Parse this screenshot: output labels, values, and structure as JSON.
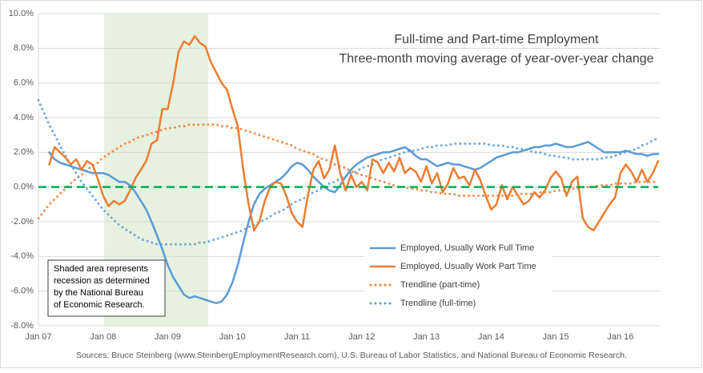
{
  "chart_data": {
    "type": "line",
    "title": [
      "Full-time and Part-time Employment",
      "Three-month moving average of year-over-year change"
    ],
    "annotation": [
      "Shaded area represents",
      "recession as determined",
      "by the National Bureau",
      "of Economic Research."
    ],
    "source": "Sources: Bruce Steinberg (www.SteinbergEmploymentResearch.com), U.S. Bureau of Labor Statistics, and National Bureau of Economic Research.",
    "categories": [
      "Jan 07",
      null,
      null,
      null,
      null,
      null,
      null,
      null,
      null,
      null,
      null,
      null,
      "Jan 08",
      null,
      null,
      null,
      null,
      null,
      null,
      null,
      null,
      null,
      null,
      null,
      "Jan 09",
      null,
      null,
      null,
      null,
      null,
      null,
      null,
      null,
      null,
      null,
      null,
      "Jan 10",
      null,
      null,
      null,
      null,
      null,
      null,
      null,
      null,
      null,
      null,
      null,
      "Jan 11",
      null,
      null,
      null,
      null,
      null,
      null,
      null,
      null,
      null,
      null,
      null,
      "Jan 12",
      null,
      null,
      null,
      null,
      null,
      null,
      null,
      null,
      null,
      null,
      null,
      "Jan 13",
      null,
      null,
      null,
      null,
      null,
      null,
      null,
      null,
      null,
      null,
      null,
      "Jan 14",
      null,
      null,
      null,
      null,
      null,
      null,
      null,
      null,
      null,
      null,
      null,
      "Jan 15",
      null,
      null,
      null,
      null,
      null,
      null,
      null,
      null,
      null,
      null,
      null,
      "Jan 16",
      null,
      null,
      null,
      null,
      null,
      null,
      null
    ],
    "series": [
      {
        "name": "Employed, Usually Work Full Time",
        "color": "#5b9bd5",
        "line_style": "solid",
        "values": [
          null,
          null,
          2.0,
          1.6,
          1.4,
          1.3,
          1.2,
          1.1,
          1.0,
          0.9,
          0.8,
          0.8,
          0.8,
          0.7,
          0.5,
          0.3,
          0.3,
          0.1,
          -0.3,
          -0.8,
          -1.3,
          -2.0,
          -2.8,
          -3.6,
          -4.5,
          -5.2,
          -5.7,
          -6.2,
          -6.4,
          -6.3,
          -6.4,
          -6.5,
          -6.6,
          -6.7,
          -6.6,
          -6.2,
          -5.5,
          -4.5,
          -3.2,
          -2.0,
          -1.0,
          -0.4,
          -0.1,
          0.1,
          0.3,
          0.5,
          0.8,
          1.2,
          1.4,
          1.3,
          1.0,
          0.6,
          0.3,
          0.0,
          -0.2,
          -0.3,
          0.1,
          0.6,
          1.0,
          1.3,
          1.5,
          1.7,
          1.8,
          1.9,
          2.0,
          2.0,
          2.1,
          2.2,
          2.3,
          2.1,
          1.8,
          1.6,
          1.6,
          1.4,
          1.2,
          1.3,
          1.4,
          1.3,
          1.3,
          1.2,
          1.1,
          1.0,
          1.1,
          1.3,
          1.5,
          1.7,
          1.8,
          1.9,
          2.0,
          2.0,
          2.1,
          2.2,
          2.3,
          2.3,
          2.4,
          2.4,
          2.5,
          2.4,
          2.3,
          2.3,
          2.4,
          2.5,
          2.6,
          2.4,
          2.2,
          2.0,
          2.0,
          2.0,
          2.0,
          2.1,
          2.0,
          1.9,
          1.9,
          1.8,
          1.9,
          1.9
        ]
      },
      {
        "name": "Employed, Usually Work Part Time",
        "color": "#ed7d31",
        "line_style": "solid",
        "values": [
          null,
          null,
          1.3,
          2.3,
          2.0,
          1.7,
          1.3,
          1.6,
          1.0,
          1.5,
          1.3,
          0.5,
          -0.5,
          -1.1,
          -0.8,
          -1.0,
          -0.8,
          -0.2,
          0.5,
          1.0,
          1.5,
          2.5,
          2.7,
          4.5,
          4.5,
          6.0,
          7.8,
          8.4,
          8.2,
          8.7,
          8.3,
          8.1,
          7.2,
          6.6,
          6.0,
          5.6,
          4.5,
          3.5,
          1.0,
          -1.0,
          -2.5,
          -2.0,
          -0.8,
          0.0,
          0.3,
          0.2,
          -0.5,
          -1.5,
          -2.0,
          -2.3,
          -0.5,
          1.0,
          1.5,
          0.5,
          1.0,
          2.4,
          0.8,
          -0.2,
          0.7,
          0.0,
          0.3,
          -0.2,
          1.6,
          1.4,
          0.8,
          1.4,
          0.9,
          1.7,
          0.8,
          1.1,
          0.9,
          0.3,
          1.2,
          0.2,
          0.8,
          -0.3,
          0.2,
          1.1,
          0.5,
          0.6,
          0.1,
          1.0,
          0.4,
          -0.5,
          -1.3,
          -1.0,
          0.1,
          -0.7,
          0.0,
          -0.5,
          -1.0,
          -0.8,
          -0.3,
          -0.6,
          -0.2,
          0.5,
          0.9,
          0.5,
          -0.5,
          0.3,
          0.6,
          -1.8,
          -2.3,
          -2.5,
          -2.0,
          -1.5,
          -1.0,
          -0.6,
          0.8,
          1.3,
          0.9,
          0.3,
          1.0,
          0.3,
          0.8,
          1.5
        ]
      },
      {
        "name": "Trendline (part-time)",
        "color": "#ed7d31",
        "line_style": "dotted",
        "values": [
          -1.8,
          -1.4,
          -1.0,
          -0.7,
          -0.4,
          -0.1,
          0.2,
          0.5,
          0.7,
          1.0,
          1.2,
          1.4,
          1.7,
          1.9,
          2.1,
          2.3,
          2.5,
          2.6,
          2.8,
          2.9,
          3.0,
          3.1,
          3.2,
          3.3,
          3.4,
          3.4,
          3.5,
          3.5,
          3.6,
          3.6,
          3.6,
          3.6,
          3.6,
          3.6,
          3.5,
          3.5,
          3.4,
          3.4,
          3.3,
          3.2,
          3.1,
          3.0,
          2.9,
          2.8,
          2.7,
          2.6,
          2.5,
          2.4,
          2.2,
          2.1,
          2.0,
          1.9,
          1.7,
          1.6,
          1.5,
          1.3,
          1.2,
          1.1,
          0.9,
          0.8,
          0.7,
          0.6,
          0.5,
          0.4,
          0.3,
          0.2,
          0.1,
          0.0,
          0.0,
          -0.1,
          -0.1,
          -0.2,
          -0.2,
          -0.3,
          -0.3,
          -0.4,
          -0.4,
          -0.4,
          -0.5,
          -0.5,
          -0.5,
          -0.5,
          -0.5,
          -0.5,
          -0.5,
          -0.5,
          -0.5,
          -0.5,
          -0.5,
          -0.4,
          -0.4,
          -0.4,
          -0.4,
          -0.3,
          -0.3,
          -0.3,
          -0.2,
          -0.2,
          -0.2,
          -0.1,
          -0.1,
          0.0,
          0.0,
          0.0,
          0.1,
          0.1,
          0.1,
          0.2,
          0.2,
          0.2,
          0.2,
          0.3,
          0.3,
          0.3,
          0.3,
          0.3
        ]
      },
      {
        "name": "Trendline (full-time)",
        "color": "#5b9bd5",
        "line_style": "dotted",
        "values": [
          5.0,
          4.3,
          3.6,
          3.0,
          2.4,
          1.8,
          1.3,
          0.8,
          0.3,
          -0.1,
          -0.5,
          -0.9,
          -1.3,
          -1.6,
          -1.9,
          -2.2,
          -2.4,
          -2.6,
          -2.8,
          -3.0,
          -3.1,
          -3.2,
          -3.3,
          -3.3,
          -3.3,
          -3.3,
          -3.3,
          -3.3,
          -3.3,
          -3.3,
          -3.2,
          -3.2,
          -3.1,
          -3.0,
          -2.9,
          -2.8,
          -2.7,
          -2.6,
          -2.5,
          -2.3,
          -2.2,
          -2.0,
          -1.9,
          -1.7,
          -1.5,
          -1.4,
          -1.2,
          -1.0,
          -0.8,
          -0.7,
          -0.5,
          -0.3,
          -0.2,
          0.0,
          0.2,
          0.3,
          0.5,
          0.6,
          0.8,
          0.9,
          1.1,
          1.2,
          1.3,
          1.5,
          1.6,
          1.7,
          1.8,
          1.9,
          2.0,
          2.1,
          2.1,
          2.2,
          2.3,
          2.3,
          2.4,
          2.4,
          2.4,
          2.5,
          2.5,
          2.5,
          2.5,
          2.5,
          2.5,
          2.5,
          2.4,
          2.4,
          2.4,
          2.3,
          2.3,
          2.2,
          2.2,
          2.1,
          2.0,
          2.0,
          1.9,
          1.8,
          1.8,
          1.7,
          1.7,
          1.6,
          1.6,
          1.6,
          1.6,
          1.6,
          1.6,
          1.7,
          1.7,
          1.8,
          1.9,
          2.0,
          2.1,
          2.2,
          2.4,
          2.5,
          2.7,
          2.8
        ]
      }
    ],
    "ylim": [
      -8,
      10
    ],
    "yticks": [
      {
        "value": -8,
        "label": "-8.0%"
      },
      {
        "value": -6,
        "label": "-6.0%"
      },
      {
        "value": -4,
        "label": "-4.0%"
      },
      {
        "value": -2,
        "label": "-2.0%"
      },
      {
        "value": 0,
        "label": "0.0%"
      },
      {
        "value": 2,
        "label": "2.0%"
      },
      {
        "value": 4,
        "label": "4.0%"
      },
      {
        "value": 6,
        "label": "6.0%"
      },
      {
        "value": 8,
        "label": "8.0%"
      },
      {
        "value": 10,
        "label": "10.0%"
      }
    ],
    "grid": true,
    "zero_line_color": "#00b050"
  }
}
